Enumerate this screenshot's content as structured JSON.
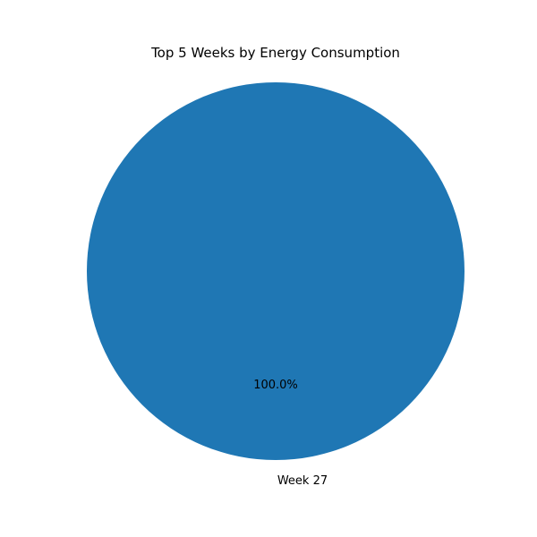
{
  "chart_data": {
    "type": "pie",
    "title": "Top 5 Weeks by Energy Consumption",
    "slices": [
      {
        "label": "Week 27",
        "value": 100.0,
        "percent_label": "100.0%",
        "color": "#1f77b4"
      }
    ],
    "legend": "none"
  }
}
